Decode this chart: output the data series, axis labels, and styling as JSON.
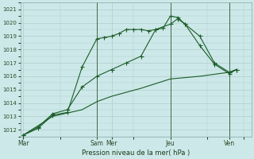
{
  "background_color": "#cde8e8",
  "plot_bg_color": "#cde8e8",
  "grid_color": "#b0cccc",
  "line_color": "#1a5c28",
  "xlabel": "Pression niveau de la mer( hPa )",
  "ylim": [
    1011.5,
    1021.5
  ],
  "yticks": [
    1012,
    1013,
    1014,
    1015,
    1016,
    1017,
    1018,
    1019,
    1020,
    1021
  ],
  "xtick_labels": [
    "Mar",
    "Sam",
    "Mer",
    "Jeu",
    "Ven"
  ],
  "xtick_positions": [
    0,
    5,
    6,
    10,
    14
  ],
  "vline_positions": [
    5,
    10,
    14
  ],
  "xlim": [
    -0.2,
    15.5
  ],
  "series1_x": [
    0,
    1,
    2,
    3,
    4,
    5,
    5.5,
    6,
    6.5,
    7,
    7.5,
    8,
    8.5,
    9,
    9.5,
    10,
    10.5,
    11,
    12,
    13,
    14,
    14.5
  ],
  "series1_y": [
    1011.6,
    1012.1,
    1013.1,
    1013.3,
    1016.7,
    1018.8,
    1018.9,
    1019.0,
    1019.2,
    1019.5,
    1019.5,
    1019.5,
    1019.4,
    1019.5,
    1019.6,
    1020.5,
    1020.4,
    1019.9,
    1018.3,
    1016.9,
    1016.2,
    1016.5
  ],
  "series2_x": [
    0,
    1,
    2,
    3,
    4,
    5,
    6,
    7,
    8,
    9,
    10,
    10.5,
    11,
    12,
    13,
    14,
    14.5
  ],
  "series2_y": [
    1011.6,
    1012.2,
    1013.2,
    1013.5,
    1015.2,
    1016.0,
    1016.5,
    1017.0,
    1017.5,
    1019.5,
    1019.9,
    1020.3,
    1019.9,
    1019.0,
    1017.0,
    1016.3,
    1016.5
  ],
  "series3_x": [
    0,
    2,
    4,
    5,
    6,
    8,
    10,
    12,
    14,
    14.5
  ],
  "series3_y": [
    1011.6,
    1013.0,
    1013.5,
    1014.1,
    1014.5,
    1015.1,
    1015.8,
    1016.0,
    1016.3,
    1016.5
  ],
  "marker_size": 2.0,
  "line_width": 0.8
}
